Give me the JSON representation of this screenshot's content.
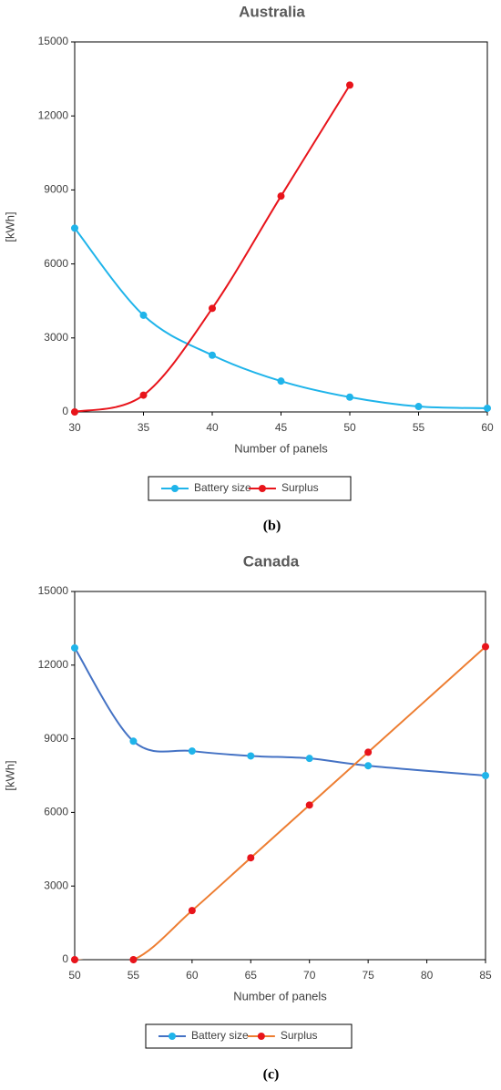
{
  "chart_data": [
    {
      "type": "line",
      "title": "Australia",
      "panel_label": "(b)",
      "x_label": "Number of panels",
      "y_label": "[kWh]",
      "x": [
        30,
        35,
        40,
        45,
        50,
        55,
        60
      ],
      "series": [
        {
          "name": "Battery size",
          "color": "#1fb4ea",
          "marker_color": "#1fb4ea",
          "values": [
            7450,
            3920,
            2300,
            1250,
            600,
            220,
            150
          ]
        },
        {
          "name": "Surplus",
          "color": "#e8141b",
          "marker_color": "#e8141b",
          "values": [
            0,
            680,
            4200,
            8750,
            13250,
            null,
            null
          ]
        }
      ],
      "xlim": [
        30,
        60
      ],
      "xticks": [
        30,
        35,
        40,
        45,
        50,
        55,
        60
      ],
      "ylim": [
        0,
        15000
      ],
      "yticks": [
        0,
        3000,
        6000,
        9000,
        12000,
        15000
      ],
      "legend": "bottom"
    },
    {
      "type": "line",
      "title": "Canada",
      "panel_label": "(c)",
      "x_label": "Number of panels",
      "y_label": "[kWh]",
      "x": [
        50,
        55,
        60,
        65,
        70,
        75,
        85
      ],
      "series": [
        {
          "name": "Battery size",
          "color": "#4472c4",
          "marker_color": "#1fb4ea",
          "values": [
            12700,
            8900,
            8500,
            8300,
            8200,
            7900,
            7500
          ]
        },
        {
          "name": "Surplus",
          "color": "#ed7d31",
          "marker_color": "#e8141b",
          "values": [
            0,
            0,
            2000,
            4150,
            6300,
            8450,
            12750
          ]
        }
      ],
      "xlim": [
        50,
        85
      ],
      "xticks": [
        50,
        55,
        60,
        65,
        70,
        75,
        80,
        85
      ],
      "ylim": [
        0,
        15000
      ],
      "yticks": [
        0,
        3000,
        6000,
        9000,
        12000,
        15000
      ],
      "legend": "bottom"
    }
  ]
}
